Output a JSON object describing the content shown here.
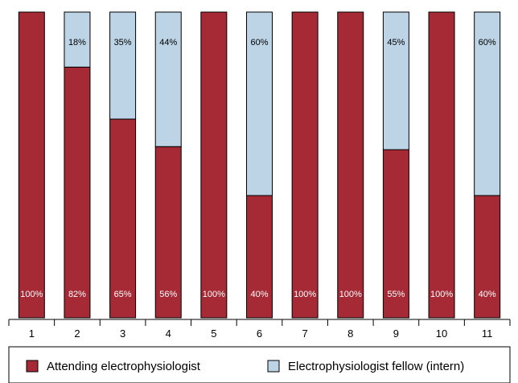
{
  "chart_data": {
    "type": "bar",
    "stacked": true,
    "orientation": "vertical",
    "categories": [
      "1",
      "2",
      "3",
      "4",
      "5",
      "6",
      "7",
      "8",
      "9",
      "10",
      "11"
    ],
    "series": [
      {
        "name": "Attending electrophysiologist",
        "values": [
          100,
          82,
          65,
          56,
          100,
          40,
          100,
          100,
          55,
          100,
          40
        ],
        "labels": [
          "100%",
          "82%",
          "65%",
          "56%",
          "100%",
          "40%",
          "100%",
          "100%",
          "55%",
          "100%",
          "40%"
        ],
        "color": "#a52a35"
      },
      {
        "name": "Electrophysiologist fellow (intern)",
        "values": [
          0,
          18,
          35,
          44,
          0,
          60,
          0,
          0,
          45,
          0,
          60
        ],
        "labels": [
          "",
          "18%",
          "35%",
          "44%",
          "",
          "60%",
          "",
          "",
          "45%",
          "",
          "60%"
        ],
        "color": "#bcd4e6"
      }
    ],
    "ylim": [
      0,
      100
    ],
    "legend_position": "bottom",
    "grid": false
  }
}
